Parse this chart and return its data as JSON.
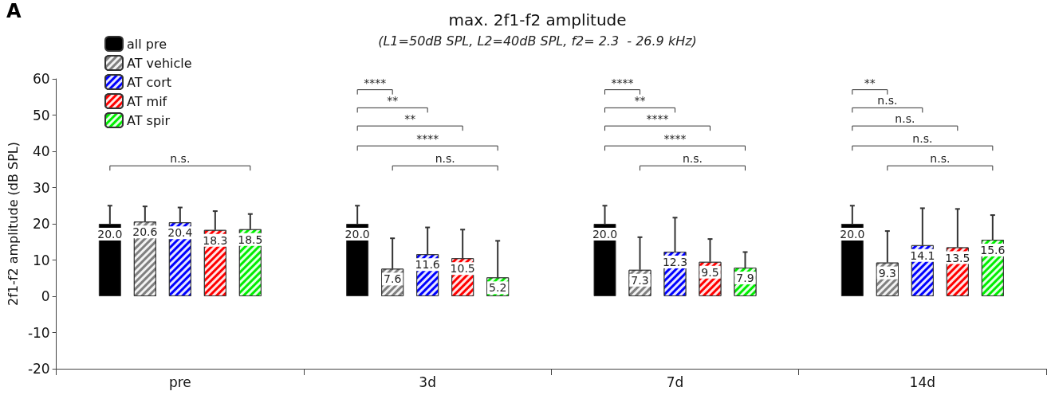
{
  "chart_data": {
    "type": "bar",
    "title": "max. 2f1-f2 amplitude",
    "subtitle": "(L1=50dB SPL, L2=40dB SPL, f2= 2.3  - 26.9 kHz)",
    "ylabel": "2f1-f2 amplitude (dB SPL)",
    "categories": [
      "pre",
      "3d",
      "7d",
      "14d"
    ],
    "series": [
      {
        "name": "all pre",
        "color": "#000000",
        "values": [
          20.0,
          20.0,
          20.0,
          20.0
        ],
        "errors": [
          [
            20.0,
            25
          ],
          [
            20.0,
            25
          ],
          [
            20.0,
            25
          ],
          [
            20.0,
            25
          ]
        ],
        "value_labels": [
          "20.0",
          "20.0",
          "20.0",
          "20.0"
        ]
      },
      {
        "name": "AT vehicle",
        "color": "#808080",
        "values": [
          20.6,
          7.6,
          7.3,
          9.3
        ],
        "errors": [
          [
            20.6,
            24.8
          ],
          [
            7.6,
            16.0
          ],
          [
            7.3,
            16.3
          ],
          [
            9.3,
            18.0
          ]
        ],
        "value_labels": [
          "20.6",
          "7.6",
          "7.3",
          "9.3"
        ]
      },
      {
        "name": "AT cort",
        "color": "#0000ff",
        "values": [
          20.4,
          11.6,
          12.3,
          14.1
        ],
        "errors": [
          [
            20.4,
            24.5
          ],
          [
            11.6,
            19.0
          ],
          [
            12.3,
            21.7
          ],
          [
            14.1,
            24.3
          ]
        ],
        "value_labels": [
          "20.4",
          "11.6",
          "12.3",
          "14.1"
        ]
      },
      {
        "name": "AT mif",
        "color": "#ff0000",
        "values": [
          18.3,
          10.5,
          9.5,
          13.5
        ],
        "errors": [
          [
            18.3,
            23.5
          ],
          [
            10.5,
            18.4
          ],
          [
            9.5,
            15.8
          ],
          [
            13.5,
            24.1
          ]
        ],
        "value_labels": [
          "18.3",
          "10.5",
          "9.5",
          "13.5"
        ]
      },
      {
        "name": "AT spir",
        "color": "#00ee00",
        "values": [
          18.5,
          5.2,
          7.9,
          15.6
        ],
        "errors": [
          [
            18.5,
            22.7
          ],
          [
            5.2,
            15.3
          ],
          [
            7.9,
            12.2
          ],
          [
            15.6,
            22.4
          ]
        ],
        "value_labels": [
          "18.5",
          "5.2",
          "7.9",
          "15.6"
        ]
      }
    ],
    "ylim": [
      -20,
      60
    ],
    "yticks": [
      -20,
      -10,
      0,
      10,
      20,
      30,
      40,
      50,
      60
    ],
    "grid": false,
    "legend": "top left",
    "annotations": [
      "A",
      "n.s.",
      "****",
      "**",
      "**",
      "****",
      "n.s.",
      "****",
      "**",
      "****",
      "****",
      "n.s.",
      "**",
      "n.s.",
      "n.s.",
      "n.s.",
      "n.s."
    ]
  }
}
